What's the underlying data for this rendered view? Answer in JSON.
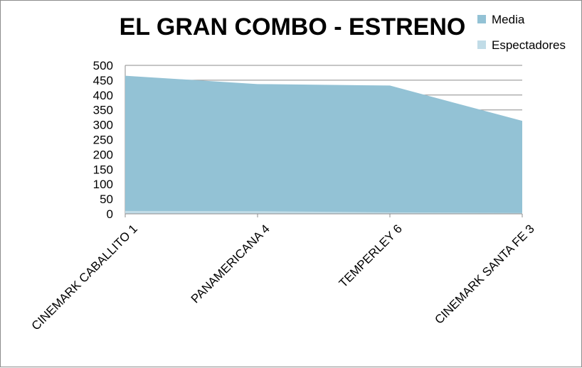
{
  "chart_data": {
    "type": "area",
    "title": "EL GRAN COMBO - ESTRENO",
    "xlabel": "",
    "ylabel": "",
    "categories": [
      "CINEMARK CABALLITO 1",
      "PANAMERICANA 4",
      "TEMPERLEY 6",
      "CINEMARK SANTA FE 3"
    ],
    "series": [
      {
        "name": "Media",
        "values": [
          465,
          437,
          432,
          313
        ],
        "color": "#93c2d5"
      },
      {
        "name": "Espectadores",
        "values": [
          10,
          9,
          5,
          3
        ],
        "color": "#c1dce7"
      }
    ],
    "ylim": [
      0,
      500
    ],
    "yticks": [
      0,
      50,
      100,
      150,
      200,
      250,
      300,
      350,
      400,
      450,
      500
    ],
    "grid": true,
    "legend_position": "top-right"
  }
}
